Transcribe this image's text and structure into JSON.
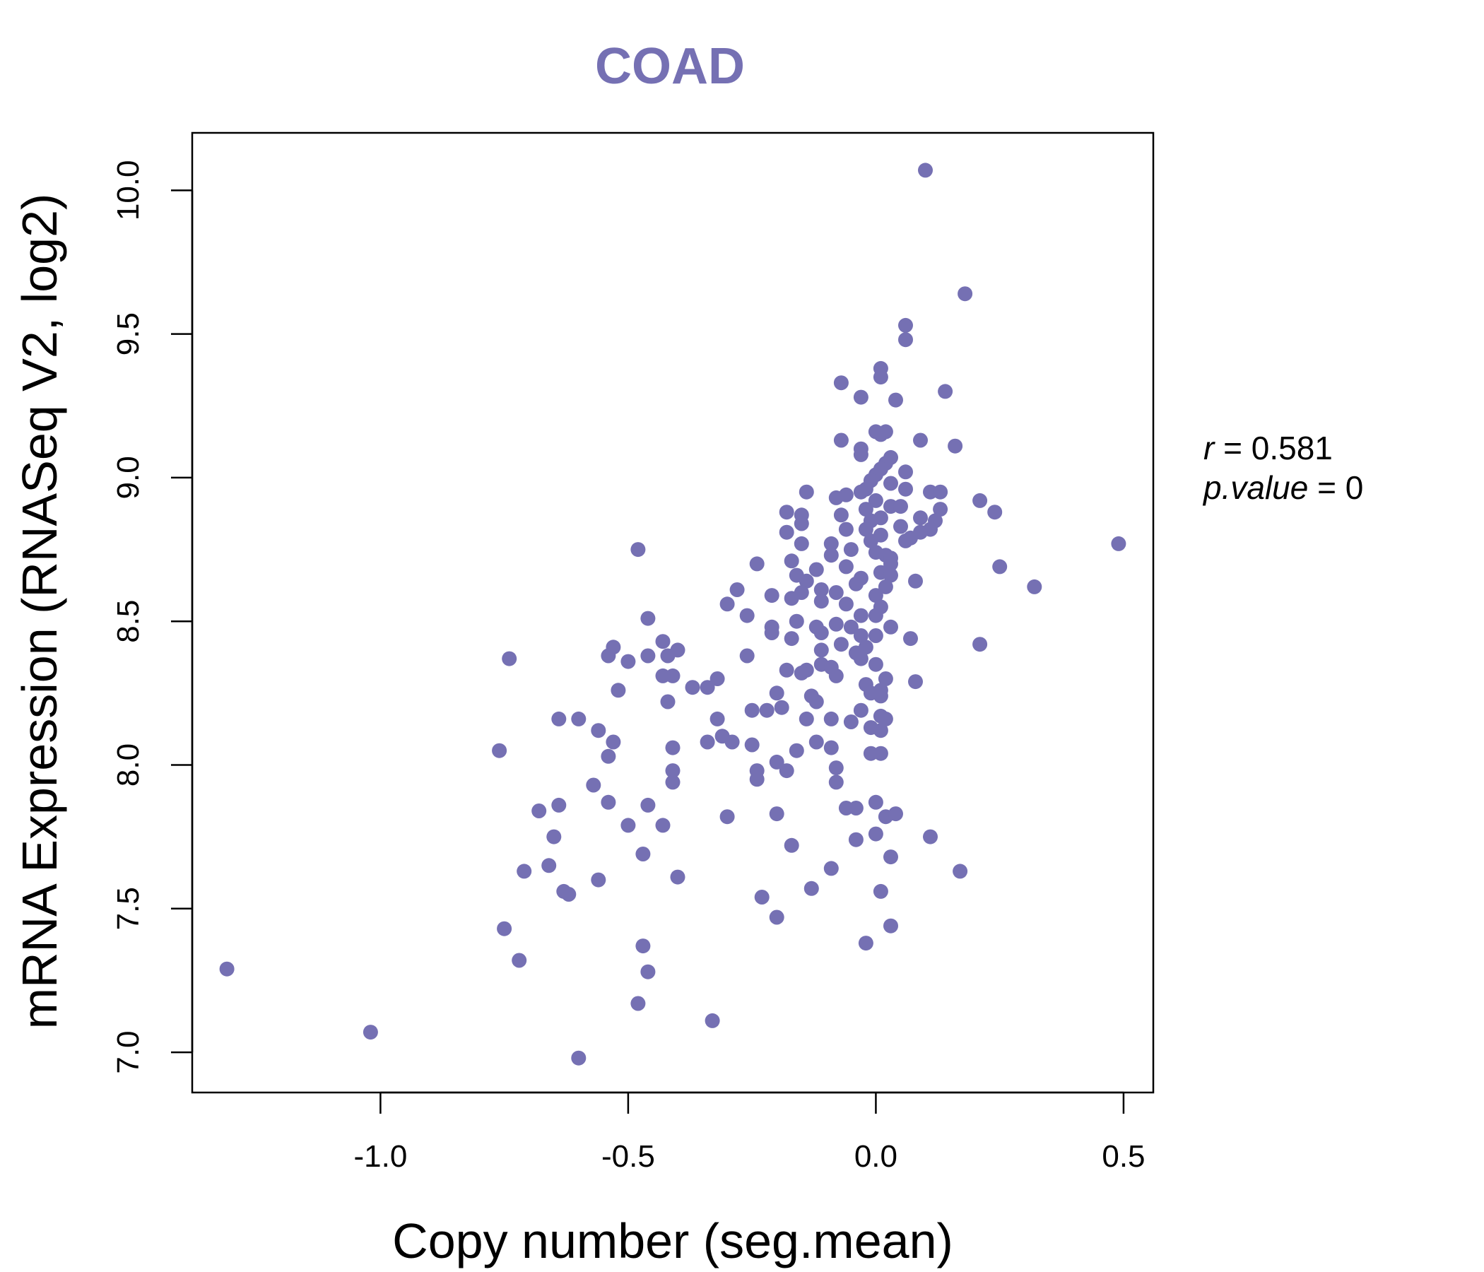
{
  "chart_data": {
    "type": "scatter",
    "title": "COAD",
    "xlabel": "Copy number (seg.mean)",
    "ylabel": "mRNA Expression (RNASeq V2, log2)",
    "xlim": [
      -1.38,
      0.56
    ],
    "ylim": [
      6.86,
      10.2
    ],
    "xticks": [
      -1.0,
      -0.5,
      0.0,
      0.5
    ],
    "xtick_labels": [
      "-1.0",
      "-0.5",
      "0.0",
      "0.5"
    ],
    "yticks": [
      7.0,
      7.5,
      8.0,
      8.5,
      9.0,
      9.5,
      10.0
    ],
    "ytick_labels": [
      "7.0",
      "7.5",
      "8.0",
      "8.5",
      "9.0",
      "9.5",
      "10.0"
    ],
    "color": "#7570b3",
    "annotation": {
      "r_label": "r",
      "r_value": "0.581",
      "p_label": "p.value",
      "p_value": "0"
    },
    "points": [
      [
        0.1,
        10.07
      ],
      [
        0.18,
        9.64
      ],
      [
        0.06,
        9.53
      ],
      [
        0.06,
        9.48
      ],
      [
        0.01,
        9.38
      ],
      [
        0.01,
        9.35
      ],
      [
        -0.07,
        9.33
      ],
      [
        0.14,
        9.3
      ],
      [
        -0.03,
        9.28
      ],
      [
        0.04,
        9.27
      ],
      [
        0.0,
        9.16
      ],
      [
        0.02,
        9.16
      ],
      [
        0.01,
        9.15
      ],
      [
        -0.07,
        9.13
      ],
      [
        0.09,
        9.13
      ],
      [
        0.16,
        9.11
      ],
      [
        -0.03,
        9.1
      ],
      [
        -0.03,
        9.08
      ],
      [
        0.03,
        9.07
      ],
      [
        0.02,
        9.05
      ],
      [
        0.01,
        9.03
      ],
      [
        0.06,
        9.02
      ],
      [
        0.0,
        9.01
      ],
      [
        -0.01,
        8.99
      ],
      [
        0.03,
        8.98
      ],
      [
        -0.02,
        8.96
      ],
      [
        0.06,
        8.96
      ],
      [
        -0.03,
        8.95
      ],
      [
        -0.14,
        8.95
      ],
      [
        0.11,
        8.95
      ],
      [
        0.13,
        8.95
      ],
      [
        -0.08,
        8.93
      ],
      [
        -0.06,
        8.94
      ],
      [
        0.0,
        8.92
      ],
      [
        0.21,
        8.92
      ],
      [
        0.03,
        8.9
      ],
      [
        0.05,
        8.9
      ],
      [
        -0.02,
        8.89
      ],
      [
        0.13,
        8.89
      ],
      [
        0.24,
        8.88
      ],
      [
        -0.18,
        8.88
      ],
      [
        -0.15,
        8.87
      ],
      [
        0.09,
        8.86
      ],
      [
        -0.07,
        8.87
      ],
      [
        0.01,
        8.86
      ],
      [
        -0.01,
        8.85
      ],
      [
        0.12,
        8.85
      ],
      [
        -0.15,
        8.84
      ],
      [
        0.05,
        8.83
      ],
      [
        -0.06,
        8.82
      ],
      [
        0.11,
        8.82
      ],
      [
        -0.02,
        8.82
      ],
      [
        -0.18,
        8.81
      ],
      [
        0.09,
        8.81
      ],
      [
        0.01,
        8.8
      ],
      [
        0.07,
        8.79
      ],
      [
        -0.01,
        8.78
      ],
      [
        0.06,
        8.78
      ],
      [
        -0.09,
        8.77
      ],
      [
        -0.15,
        8.77
      ],
      [
        0.49,
        8.77
      ],
      [
        -0.48,
        8.75
      ],
      [
        -0.05,
        8.75
      ],
      [
        0.0,
        8.74
      ],
      [
        0.02,
        8.73
      ],
      [
        -0.09,
        8.73
      ],
      [
        0.03,
        8.72
      ],
      [
        -0.17,
        8.71
      ],
      [
        -0.24,
        8.7
      ],
      [
        0.03,
        8.7
      ],
      [
        -0.06,
        8.69
      ],
      [
        0.25,
        8.69
      ],
      [
        -0.12,
        8.68
      ],
      [
        0.01,
        8.67
      ],
      [
        -0.16,
        8.66
      ],
      [
        0.03,
        8.66
      ],
      [
        -0.03,
        8.65
      ],
      [
        -0.14,
        8.64
      ],
      [
        0.08,
        8.64
      ],
      [
        -0.04,
        8.63
      ],
      [
        0.02,
        8.62
      ],
      [
        0.32,
        8.62
      ],
      [
        -0.11,
        8.61
      ],
      [
        -0.28,
        8.61
      ],
      [
        -0.08,
        8.6
      ],
      [
        -0.15,
        8.6
      ],
      [
        0.0,
        8.59
      ],
      [
        -0.21,
        8.59
      ],
      [
        -0.17,
        8.58
      ],
      [
        -0.11,
        8.57
      ],
      [
        -0.06,
        8.56
      ],
      [
        -0.3,
        8.56
      ],
      [
        0.01,
        8.55
      ],
      [
        -0.03,
        8.52
      ],
      [
        -0.26,
        8.52
      ],
      [
        0.0,
        8.52
      ],
      [
        -0.46,
        8.51
      ],
      [
        -0.16,
        8.5
      ],
      [
        -0.08,
        8.49
      ],
      [
        0.03,
        8.48
      ],
      [
        -0.12,
        8.48
      ],
      [
        -0.05,
        8.48
      ],
      [
        -0.21,
        8.48
      ],
      [
        -0.11,
        8.46
      ],
      [
        -0.21,
        8.46
      ],
      [
        0.0,
        8.45
      ],
      [
        -0.03,
        8.45
      ],
      [
        -0.17,
        8.44
      ],
      [
        0.07,
        8.44
      ],
      [
        -0.43,
        8.43
      ],
      [
        -0.07,
        8.42
      ],
      [
        0.21,
        8.42
      ],
      [
        -0.02,
        8.41
      ],
      [
        -0.53,
        8.41
      ],
      [
        -0.11,
        8.4
      ],
      [
        -0.4,
        8.4
      ],
      [
        -0.04,
        8.39
      ],
      [
        -0.42,
        8.38
      ],
      [
        -0.26,
        8.38
      ],
      [
        -0.46,
        8.38
      ],
      [
        -0.54,
        8.38
      ],
      [
        -0.74,
        8.37
      ],
      [
        -0.03,
        8.37
      ],
      [
        -0.5,
        8.36
      ],
      [
        -0.11,
        8.35
      ],
      [
        0.0,
        8.35
      ],
      [
        -0.09,
        8.34
      ],
      [
        -0.18,
        8.33
      ],
      [
        -0.14,
        8.33
      ],
      [
        -0.15,
        8.32
      ],
      [
        -0.08,
        8.31
      ],
      [
        -0.41,
        8.31
      ],
      [
        -0.32,
        8.3
      ],
      [
        -0.43,
        8.31
      ],
      [
        0.02,
        8.3
      ],
      [
        0.08,
        8.29
      ],
      [
        -0.02,
        8.28
      ],
      [
        -0.34,
        8.27
      ],
      [
        -0.37,
        8.27
      ],
      [
        0.01,
        8.26
      ],
      [
        -0.52,
        8.26
      ],
      [
        -0.01,
        8.25
      ],
      [
        -0.2,
        8.25
      ],
      [
        0.01,
        8.24
      ],
      [
        -0.13,
        8.24
      ],
      [
        -0.42,
        8.22
      ],
      [
        -0.12,
        8.22
      ],
      [
        -0.25,
        8.19
      ],
      [
        -0.22,
        8.19
      ],
      [
        -0.03,
        8.19
      ],
      [
        -0.19,
        8.2
      ],
      [
        0.01,
        8.17
      ],
      [
        -0.64,
        8.16
      ],
      [
        -0.6,
        8.16
      ],
      [
        -0.32,
        8.16
      ],
      [
        -0.14,
        8.16
      ],
      [
        -0.09,
        8.16
      ],
      [
        0.02,
        8.16
      ],
      [
        -0.05,
        8.15
      ],
      [
        -0.01,
        8.13
      ],
      [
        -0.56,
        8.12
      ],
      [
        0.01,
        8.12
      ],
      [
        -0.31,
        8.1
      ],
      [
        -0.34,
        8.08
      ],
      [
        -0.29,
        8.08
      ],
      [
        -0.53,
        8.08
      ],
      [
        -0.12,
        8.08
      ],
      [
        -0.25,
        8.07
      ],
      [
        -0.41,
        8.06
      ],
      [
        -0.09,
        8.06
      ],
      [
        -0.16,
        8.05
      ],
      [
        -0.76,
        8.05
      ],
      [
        0.01,
        8.04
      ],
      [
        -0.01,
        8.04
      ],
      [
        -0.54,
        8.03
      ],
      [
        -0.2,
        8.01
      ],
      [
        -0.41,
        7.98
      ],
      [
        -0.18,
        7.98
      ],
      [
        -0.24,
        7.98
      ],
      [
        -0.08,
        7.99
      ],
      [
        -0.24,
        7.95
      ],
      [
        -0.41,
        7.94
      ],
      [
        -0.08,
        7.94
      ],
      [
        -0.57,
        7.93
      ],
      [
        -0.54,
        7.87
      ],
      [
        0.0,
        7.87
      ],
      [
        -0.46,
        7.86
      ],
      [
        -0.64,
        7.86
      ],
      [
        -0.68,
        7.84
      ],
      [
        -0.06,
        7.85
      ],
      [
        -0.04,
        7.85
      ],
      [
        0.02,
        7.82
      ],
      [
        0.04,
        7.83
      ],
      [
        -0.3,
        7.82
      ],
      [
        -0.2,
        7.83
      ],
      [
        -0.5,
        7.79
      ],
      [
        -0.43,
        7.79
      ],
      [
        0.0,
        7.76
      ],
      [
        0.11,
        7.75
      ],
      [
        -0.65,
        7.75
      ],
      [
        -0.04,
        7.74
      ],
      [
        -0.17,
        7.72
      ],
      [
        -0.47,
        7.69
      ],
      [
        0.03,
        7.68
      ],
      [
        -0.66,
        7.65
      ],
      [
        -0.09,
        7.64
      ],
      [
        -0.71,
        7.63
      ],
      [
        0.17,
        7.63
      ],
      [
        -0.4,
        7.61
      ],
      [
        -0.56,
        7.6
      ],
      [
        -0.13,
        7.57
      ],
      [
        0.01,
        7.56
      ],
      [
        -0.63,
        7.56
      ],
      [
        -0.62,
        7.55
      ],
      [
        -0.23,
        7.54
      ],
      [
        -0.2,
        7.47
      ],
      [
        0.03,
        7.44
      ],
      [
        -0.75,
        7.43
      ],
      [
        -0.02,
        7.38
      ],
      [
        -0.47,
        7.37
      ],
      [
        -0.72,
        7.32
      ],
      [
        -1.31,
        7.29
      ],
      [
        -0.46,
        7.28
      ],
      [
        -0.48,
        7.17
      ],
      [
        -0.33,
        7.11
      ],
      [
        -1.02,
        7.07
      ],
      [
        -0.6,
        6.98
      ]
    ]
  }
}
